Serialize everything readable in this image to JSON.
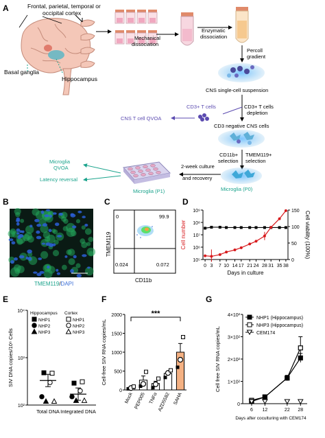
{
  "panel_letters": {
    "a": "A",
    "b": "B",
    "c": "C",
    "d": "D",
    "e": "E",
    "f": "F",
    "g": "G"
  },
  "workflow": {
    "brain_regions": "Frontal, parietal, temporal or",
    "brain_regions_2": "occipital cortex",
    "basal_ganglia": "Basal ganglia",
    "hippocampus": "Hippocampus",
    "mechanical_1": "Mechanical",
    "mechanical_2": "dissociation",
    "enzymatic_1": "Enzymatic",
    "enzymatic_2": "dissociation",
    "percoll_1": "Percoll",
    "percoll_2": "gradient",
    "cns_suspension": "CNS single-cell suspension",
    "cd3_t_cells": "CD3+ T cells",
    "cd3_depletion_1": "CD3+ T cells",
    "cd3_depletion_2": "depletion",
    "cns_t_cell_qvoa": "CNS T cell QVOA",
    "cd3_negative": "CD3 negative CNS  cells",
    "cd11b_1": "CD11b+",
    "cd11b_2": "selection",
    "tmem_1": "TMEM119+",
    "tmem_2": "selection",
    "microglia_qvoa_1": "Microglia",
    "microglia_qvoa_2": "QVOA",
    "latency_reversal": "Latency reversal",
    "culture_1": "2-week culture",
    "culture_2": "and recovery",
    "microglia_p1": "Microglia (P1)",
    "microglia_p0": "Microglia (P0)"
  },
  "panel_b": {
    "stain": "TMEM119",
    "sep": "/",
    "dapi": "DAPI"
  },
  "panel_c": {
    "ylabel": "TMEM119",
    "xlabel": "CD11b",
    "q_ul": "0",
    "q_ur": "99.9",
    "q_ll": "0.024",
    "q_lr": "0.072"
  },
  "colors": {
    "red": "#d7191c",
    "teal": "#1aa38c",
    "purple": "#5b4bb0",
    "orange": "#f4b183"
  },
  "chart_data": [
    {
      "panel": "D",
      "type": "line",
      "xlabel": "Days in culture",
      "ylabel_left": "Cell number",
      "ylabel_right": "Cell viability (100%)",
      "x_ticks": [
        "0",
        "3",
        "7",
        "10",
        "14",
        "17",
        "21",
        "24",
        "28",
        "31",
        "35",
        "38"
      ],
      "y_left_ticks": [
        "10⁵",
        "10⁶",
        "10⁷",
        "10⁸",
        "10⁹"
      ],
      "y_right_ticks": [
        "0",
        "50",
        "100",
        "150"
      ],
      "log_y_left": true,
      "series": [
        {
          "name": "Cell number",
          "axis": "left",
          "color": "#d7191c",
          "x": [
            0,
            3,
            7,
            10,
            14,
            17,
            21,
            24,
            28,
            31,
            35,
            38
          ],
          "y": [
            200000,
            180000,
            250000,
            400000,
            600000,
            900000,
            1800000,
            3000000,
            8000000,
            40000000,
            200000000,
            900000000
          ]
        },
        {
          "name": "Cell viability",
          "axis": "right",
          "color": "#000000",
          "x": [
            0,
            3,
            7,
            10,
            14,
            17,
            21,
            24,
            28,
            31,
            35,
            38
          ],
          "y": [
            95,
            98,
            98,
            97,
            97,
            97,
            97,
            97,
            97,
            97,
            97,
            97
          ]
        }
      ]
    },
    {
      "panel": "E",
      "type": "scatter",
      "ylabel": "SIV DNA copies/10⁶ Cells",
      "categories": [
        "Total DNA",
        "Integrated DNA"
      ],
      "y_ticks": [
        "10²",
        "10³",
        "10⁴"
      ],
      "log_y": true,
      "legend_groups": [
        "Hippocampus",
        "Cortex"
      ],
      "legend_items": [
        "NHP1",
        "NHP2",
        "NHP3"
      ],
      "points": [
        {
          "group": "Total DNA",
          "region": "Hippocampus",
          "nhp": "NHP1",
          "y": 480
        },
        {
          "group": "Total DNA",
          "region": "Hippocampus",
          "nhp": "NHP2",
          "y": 150
        },
        {
          "group": "Total DNA",
          "region": "Hippocampus",
          "nhp": "NHP3",
          "y": 120
        },
        {
          "group": "Total DNA",
          "region": "Cortex",
          "nhp": "NHP1",
          "y": 470
        },
        {
          "group": "Total DNA",
          "region": "Cortex",
          "nhp": "NHP2",
          "y": 300
        },
        {
          "group": "Total DNA",
          "region": "Cortex",
          "nhp": "NHP3",
          "y": 120
        },
        {
          "group": "Integrated DNA",
          "region": "Hippocampus",
          "nhp": "NHP1",
          "y": 290
        },
        {
          "group": "Integrated DNA",
          "region": "Hippocampus",
          "nhp": "NHP2",
          "y": 150
        },
        {
          "group": "Integrated DNA",
          "region": "Hippocampus",
          "nhp": "NHP3",
          "y": 125
        },
        {
          "group": "Integrated DNA",
          "region": "Cortex",
          "nhp": "NHP1",
          "y": 310
        },
        {
          "group": "Integrated DNA",
          "region": "Cortex",
          "nhp": "NHP2",
          "y": 200
        },
        {
          "group": "Integrated DNA",
          "region": "Cortex",
          "nhp": "NHP3",
          "y": 125
        }
      ],
      "means": [
        330,
        170
      ]
    },
    {
      "panel": "F",
      "type": "bar",
      "ylabel": "Cell-free SIV RNA copies/mL",
      "categories": [
        "Mock",
        "PEP005",
        "TNFα",
        "AZD5582",
        "SAHA"
      ],
      "values": [
        60,
        260,
        170,
        440,
        1000
      ],
      "errors": [
        15,
        110,
        60,
        50,
        230
      ],
      "points": [
        [
          30,
          50,
          90
        ],
        [
          100,
          160,
          480
        ],
        [
          60,
          150,
          300
        ],
        [
          330,
          450,
          520
        ],
        [
          600,
          800,
          1400
        ]
      ],
      "y_ticks": [
        "0",
        "500",
        "1000",
        "1500",
        "2000"
      ],
      "ylim": [
        0,
        2000
      ],
      "significance": "***"
    },
    {
      "panel": "G",
      "type": "line",
      "xlabel": "Days after coculturing with CEM174",
      "ylabel": "Cell free SIV RNA copies/mL",
      "x_ticks": [
        "6",
        "12",
        "22",
        "28"
      ],
      "y_ticks": [
        "0",
        "1×10²",
        "2×10²",
        "3×10²",
        "4×10²"
      ],
      "ylim": [
        0,
        400
      ],
      "series": [
        {
          "name": "NHP1 (Hippocampus)",
          "x": [
            6,
            12,
            22,
            28
          ],
          "y": [
            10,
            30,
            115,
            205
          ],
          "err": [
            6,
            8,
            10,
            20
          ]
        },
        {
          "name": "NHP3 (Hippocampus)",
          "x": [
            6,
            12,
            22,
            28
          ],
          "y": [
            15,
            30,
            115,
            250
          ],
          "err": [
            8,
            10,
            12,
            50
          ]
        },
        {
          "name": "CEM174",
          "x": [
            6,
            12,
            22,
            28
          ],
          "y": [
            0,
            0,
            0,
            0
          ],
          "err": [
            0,
            0,
            0,
            0
          ]
        }
      ]
    }
  ]
}
